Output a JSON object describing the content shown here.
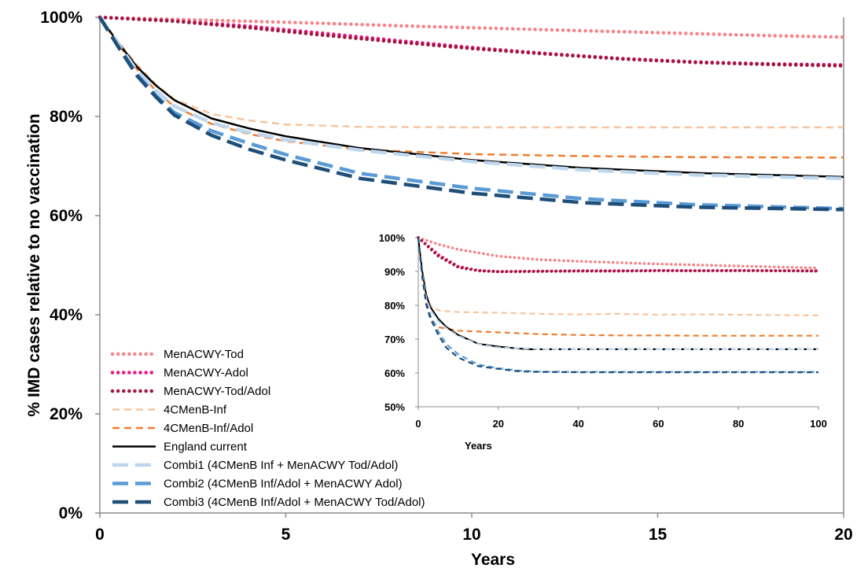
{
  "chart_data": [
    {
      "type": "line",
      "title": "",
      "xlabel": "Years",
      "ylabel": "% IMD cases relative to no vaccination",
      "xlim": [
        0,
        20
      ],
      "ylim": [
        0,
        100
      ],
      "x_ticks": [
        "0",
        "5",
        "10",
        "15",
        "20"
      ],
      "y_ticks": [
        "0%",
        "20%",
        "40%",
        "60%",
        "80%",
        "100%"
      ],
      "grid": false,
      "legend_position": "bottom-left",
      "series": [
        {
          "name": "MenACWY-Tod",
          "color": "#f4858a",
          "style": "dotted",
          "x": [
            0,
            2,
            4,
            6,
            8,
            10,
            12,
            14,
            16,
            18,
            20
          ],
          "y": [
            100,
            99.6,
            99.2,
            98.8,
            98.3,
            97.9,
            97.5,
            97.1,
            96.7,
            96.3,
            96
          ]
        },
        {
          "name": "MenACWY-Adol",
          "color": "#e5197f",
          "style": "dotted",
          "x": [
            0,
            2,
            4,
            6,
            8,
            10,
            12,
            14,
            16,
            18,
            20
          ],
          "y": [
            100,
            99.3,
            98.2,
            96.8,
            95.3,
            93.9,
            92.7,
            91.7,
            91,
            90.6,
            90.4
          ]
        },
        {
          "name": "MenACWY-Tod/Adol",
          "color": "#a0163f",
          "style": "dotted",
          "x": [
            0,
            2,
            4,
            6,
            8,
            10,
            12,
            14,
            16,
            18,
            20
          ],
          "y": [
            100,
            99.2,
            97.9,
            96.4,
            95,
            93.7,
            92.6,
            91.6,
            90.9,
            90.5,
            90.2
          ]
        },
        {
          "name": "4CMenB-Inf",
          "color": "#f7c49e",
          "style": "dashed",
          "x": [
            0,
            0.5,
            1,
            1.5,
            2,
            3,
            4,
            5,
            7,
            10,
            13,
            16,
            20
          ],
          "y": [
            100,
            95,
            90.5,
            86.5,
            83.5,
            80.5,
            79.2,
            78.4,
            77.9,
            77.8,
            77.8,
            77.8,
            77.8
          ]
        },
        {
          "name": "4CMenB-Inf/Adol",
          "color": "#ee7d31",
          "style": "dashed",
          "x": [
            0,
            0.5,
            1,
            1.5,
            2,
            3,
            4,
            5,
            7,
            10,
            13,
            16,
            20
          ],
          "y": [
            100,
            94.5,
            89.5,
            85.2,
            82,
            78.5,
            76.5,
            75,
            73.3,
            72.4,
            72,
            71.8,
            71.7
          ]
        },
        {
          "name": "England current",
          "color": "#000000",
          "style": "solid",
          "x": [
            0,
            0.5,
            1,
            1.5,
            2,
            3,
            4,
            5,
            7,
            10,
            13,
            16,
            20
          ],
          "y": [
            100,
            94.8,
            90,
            86.3,
            83.3,
            79.6,
            77.6,
            76,
            73.6,
            71.2,
            69.6,
            68.6,
            67.8
          ]
        },
        {
          "name": "Combi1 (4CMenB Inf + MenACWY Tod/Adol)",
          "color": "#bdd7ee",
          "style": "dashed",
          "x": [
            0,
            0.5,
            1,
            1.5,
            2,
            3,
            4,
            5,
            7,
            10,
            13,
            16,
            20
          ],
          "y": [
            100,
            94.5,
            89.2,
            85.3,
            82.1,
            78.7,
            76.8,
            75.3,
            73.2,
            70.9,
            69.2,
            68.2,
            67.5
          ]
        },
        {
          "name": "Combi2 (4CMenB Inf/Adol + MenACWY Adol)",
          "color": "#5b9bd5",
          "style": "dashed",
          "x": [
            0,
            0.5,
            1,
            1.5,
            2,
            3,
            4,
            5,
            7,
            10,
            13,
            16,
            20
          ],
          "y": [
            100,
            94,
            88.5,
            84.3,
            80.8,
            77.1,
            74.6,
            72.3,
            68.5,
            65.5,
            63.4,
            62.2,
            61.4
          ]
        },
        {
          "name": "Combi3 (4CMenB Inf/Adol + MenACWY Tod/Adol)",
          "color": "#1f4e79",
          "style": "dashed",
          "x": [
            0,
            0.5,
            1,
            1.5,
            2,
            3,
            4,
            5,
            7,
            10,
            13,
            16,
            20
          ],
          "y": [
            100,
            94,
            88.2,
            84,
            80.3,
            76.2,
            73.4,
            71.2,
            67.5,
            64.5,
            62.6,
            61.7,
            61.2
          ]
        }
      ]
    },
    {
      "type": "line",
      "title": "",
      "xlabel": "Years",
      "ylabel": "",
      "xlim": [
        0,
        100
      ],
      "ylim": [
        50,
        100
      ],
      "x_ticks": [
        "0",
        "20",
        "40",
        "60",
        "80",
        "100"
      ],
      "y_ticks": [
        "50%",
        "60%",
        "70%",
        "80%",
        "90%",
        "100%"
      ],
      "grid": false,
      "series": [
        {
          "color": "#f4858a",
          "style": "dotted",
          "x": [
            0,
            5,
            10,
            20,
            30,
            40,
            50,
            60,
            70,
            80,
            90,
            100
          ],
          "y": [
            100,
            98,
            96.5,
            94.5,
            93.5,
            93,
            92.6,
            92.2,
            91.9,
            91.6,
            91.3,
            91
          ]
        },
        {
          "color": "#e5197f",
          "style": "dotted",
          "x": [
            0,
            5,
            10,
            15,
            20,
            30,
            40,
            50,
            60,
            70,
            80,
            90,
            100
          ],
          "y": [
            100,
            95,
            91.5,
            90.3,
            90,
            90.1,
            90.2,
            90.2,
            90.3,
            90.2,
            90.3,
            90.2,
            90.2
          ]
        },
        {
          "color": "#a0163f",
          "style": "dotted",
          "x": [
            0,
            5,
            10,
            15,
            20,
            30,
            40,
            50,
            60,
            70,
            80,
            90,
            100
          ],
          "y": [
            100,
            94.5,
            91.2,
            90.2,
            89.9,
            90,
            90.1,
            90.1,
            90.2,
            90.2,
            90.2,
            90.2,
            90.1
          ]
        },
        {
          "color": "#f7c49e",
          "style": "dashed",
          "x": [
            0,
            1,
            2,
            3,
            5,
            10,
            20,
            30,
            40,
            50,
            60,
            70,
            80,
            90,
            100
          ],
          "y": [
            100,
            90,
            83,
            80,
            78.5,
            78,
            77.8,
            77.5,
            77.3,
            77.5,
            77.2,
            77.3,
            77.2,
            77.1,
            77
          ]
        },
        {
          "color": "#ee7d31",
          "style": "dashed",
          "x": [
            0,
            1,
            2,
            3,
            5,
            10,
            20,
            30,
            40,
            50,
            60,
            70,
            80,
            90,
            100
          ],
          "y": [
            100,
            89,
            80,
            76,
            73.5,
            72.5,
            72,
            71.5,
            71.2,
            71.1,
            71.1,
            71,
            71,
            71,
            71
          ]
        },
        {
          "color": "#000000",
          "style": "solid",
          "x": [
            0,
            1,
            2,
            3,
            5,
            7,
            10,
            15,
            20,
            25,
            28
          ],
          "y": [
            100,
            90,
            83,
            79.5,
            76,
            73.6,
            71.2,
            68.6,
            67.8,
            67.2,
            67
          ]
        },
        {
          "color": "#000000",
          "style": "dashed",
          "x": [
            28,
            40,
            60,
            80,
            100
          ],
          "y": [
            67,
            67,
            67,
            67,
            67
          ]
        },
        {
          "color": "#bdd7ee",
          "style": "dashed",
          "x": [
            0,
            1,
            2,
            3,
            5,
            7,
            10,
            15,
            20,
            30,
            40,
            60,
            80,
            100
          ],
          "y": [
            100,
            89,
            82,
            78.7,
            75.3,
            73.2,
            70.9,
            68.5,
            67.5,
            67.1,
            67,
            67,
            67,
            67
          ]
        },
        {
          "color": "#5b9bd5",
          "style": "dashed",
          "x": [
            0,
            1,
            2,
            3,
            5,
            7,
            10,
            15,
            20,
            25,
            30,
            40,
            60,
            80,
            100
          ],
          "y": [
            100,
            88.5,
            80.8,
            77.1,
            72.3,
            68.5,
            65.5,
            62.5,
            61.4,
            60.7,
            60.4,
            60.3,
            60.3,
            60.3,
            60.3
          ]
        },
        {
          "color": "#1f4e79",
          "style": "dashed",
          "x": [
            0,
            1,
            2,
            3,
            5,
            7,
            10,
            15,
            20,
            25,
            30,
            40,
            60,
            80,
            100
          ],
          "y": [
            100,
            88.2,
            80.3,
            76.2,
            71.2,
            67.5,
            64.5,
            62,
            61.2,
            60.5,
            60.3,
            60.2,
            60.2,
            60.2,
            60.2
          ]
        }
      ]
    }
  ]
}
